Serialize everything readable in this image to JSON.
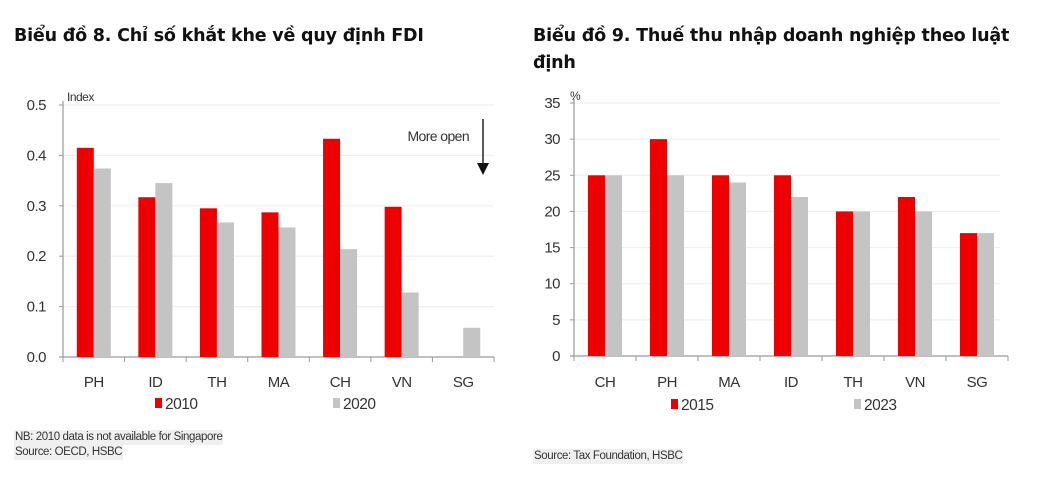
{
  "chart_data": [
    {
      "type": "bar",
      "title": "Biểu đồ 8. Chỉ số khắt khe về quy định FDI",
      "xlabel": "",
      "ylabel": "Index",
      "ylim": [
        0,
        0.5
      ],
      "yticks": [
        "0.0",
        "0.1",
        "0.2",
        "0.3",
        "0.4",
        "0.5"
      ],
      "ytick_values": [
        0,
        0.1,
        0.2,
        0.3,
        0.4,
        0.5
      ],
      "categories": [
        "PH",
        "ID",
        "TH",
        "MA",
        "CH",
        "VN",
        "SG"
      ],
      "series": [
        {
          "name": "2010",
          "color": "#ee0000",
          "values": [
            0.415,
            0.317,
            0.295,
            0.287,
            0.433,
            0.298,
            null
          ]
        },
        {
          "name": "2020",
          "color": "#c4c4c4",
          "values": [
            0.374,
            0.345,
            0.267,
            0.257,
            0.214,
            0.128,
            0.058
          ]
        }
      ],
      "grid": true,
      "legend": "bottom",
      "annotation": "More open",
      "notes": [
        "NB: 2010 data is not available for Singapore",
        "Source: OECD, HSBC"
      ]
    },
    {
      "type": "bar",
      "title": "Biểu đồ 9. Thuế thu nhập doanh nghiệp theo luật định",
      "xlabel": "",
      "ylabel": "%",
      "ylim": [
        0,
        35
      ],
      "yticks": [
        "0",
        "5",
        "10",
        "15",
        "20",
        "25",
        "30",
        "35"
      ],
      "ytick_values": [
        0,
        5,
        10,
        15,
        20,
        25,
        30,
        35
      ],
      "categories": [
        "CH",
        "PH",
        "MA",
        "ID",
        "TH",
        "VN",
        "SG"
      ],
      "series": [
        {
          "name": "2015",
          "color": "#ee0000",
          "values": [
            25,
            30,
            25,
            25,
            20,
            22,
            17
          ]
        },
        {
          "name": "2023",
          "color": "#c4c4c4",
          "values": [
            25,
            25,
            24,
            22,
            20,
            20,
            17
          ]
        }
      ],
      "grid": true,
      "legend": "bottom",
      "notes": [
        "Source: Tax Foundation, HSBC"
      ]
    }
  ]
}
